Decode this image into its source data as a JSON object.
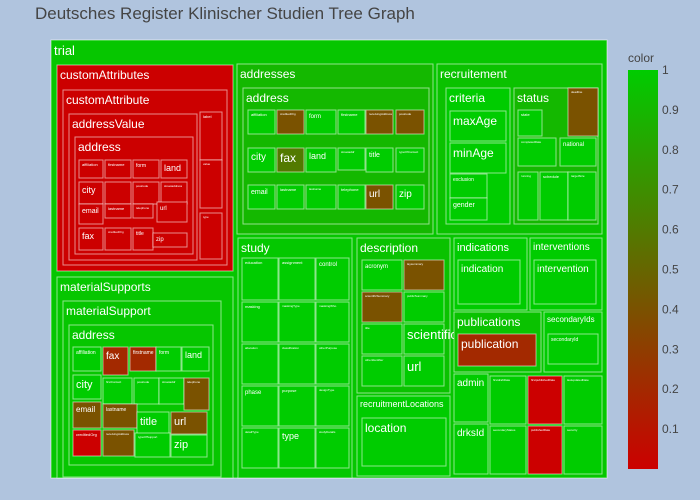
{
  "chart_data": {
    "type": "treemap",
    "title": "Deutsches Register Klinischer Studien Tree Graph",
    "colorbar": {
      "title": "color",
      "range": [
        0,
        1
      ],
      "ticks": [
        "0.1",
        "0.2",
        "0.3",
        "0.4",
        "0.5",
        "0.6",
        "0.7",
        "0.8",
        "0.9",
        "1"
      ],
      "tick_values": [
        0.1,
        0.2,
        0.3,
        0.4,
        0.5,
        0.6,
        0.7,
        0.8,
        0.9,
        1
      ],
      "low_color": "#cc0000",
      "high_color": "#00cc00"
    },
    "nodes": [
      {
        "id": "trial",
        "label": "trial",
        "parent": "",
        "color": 0.97
      },
      {
        "id": "ca",
        "label": "customAttributes",
        "parent": "trial",
        "color": 0.0
      },
      {
        "id": "ca2",
        "label": "customAttribute",
        "parent": "ca",
        "color": 0.0
      },
      {
        "id": "av",
        "label": "addressValue",
        "parent": "ca2",
        "color": 0.0
      },
      {
        "id": "av_addr",
        "label": "address",
        "parent": "av",
        "color": 0.0
      },
      {
        "id": "av_aff",
        "label": "affiliation",
        "parent": "av_addr",
        "color": 0.0
      },
      {
        "id": "av_first",
        "label": "firstname",
        "parent": "av_addr",
        "color": 0.0
      },
      {
        "id": "av_form",
        "label": "form",
        "parent": "av_addr",
        "color": 0.0
      },
      {
        "id": "av_land",
        "label": "land",
        "parent": "av_addr",
        "color": 0.0
      },
      {
        "id": "av_city",
        "label": "city",
        "parent": "av_addr",
        "color": 0.0
      },
      {
        "id": "av_blank",
        "label": "",
        "parent": "av_addr",
        "color": 0.0
      },
      {
        "id": "av_post",
        "label": "postcode",
        "parent": "av_addr",
        "color": 0.0
      },
      {
        "id": "av_street",
        "label": "streetaddress",
        "parent": "av_addr",
        "color": 0.0
      },
      {
        "id": "av_email",
        "label": "email",
        "parent": "av_addr",
        "color": 0.0
      },
      {
        "id": "av_last",
        "label": "lastname",
        "parent": "av_addr",
        "color": 0.0
      },
      {
        "id": "av_tel",
        "label": "telephone",
        "parent": "av_addr",
        "color": 0.0
      },
      {
        "id": "av_url",
        "label": "url",
        "parent": "av_addr",
        "color": 0.0
      },
      {
        "id": "av_fax",
        "label": "fax",
        "parent": "av_addr",
        "color": 0.0
      },
      {
        "id": "av_cred",
        "label": "creditedOrg",
        "parent": "av_addr",
        "color": 0.0
      },
      {
        "id": "av_title",
        "label": "title",
        "parent": "av_addr",
        "color": 0.0
      },
      {
        "id": "av_zip",
        "label": "zip",
        "parent": "av_addr",
        "color": 0.0
      },
      {
        "id": "ca_label",
        "label": "label",
        "parent": "ca2",
        "color": 0.0
      },
      {
        "id": "ca_val",
        "label": "value",
        "parent": "ca2",
        "color": 0.0
      },
      {
        "id": "ca_type",
        "label": "type",
        "parent": "ca2",
        "color": 0.0
      },
      {
        "id": "ms",
        "label": "materialSupports",
        "parent": "trial",
        "color": 0.97
      },
      {
        "id": "ms2",
        "label": "materialSupport",
        "parent": "ms",
        "color": 0.97
      },
      {
        "id": "ms_addr",
        "label": "address",
        "parent": "ms2",
        "color": 0.97
      },
      {
        "id": "ms_aff",
        "label": "affiliation",
        "parent": "ms_addr",
        "color": 1.0
      },
      {
        "id": "ms_fax",
        "label": "fax",
        "parent": "ms_addr",
        "color": 0.2
      },
      {
        "id": "ms_first",
        "label": "firstname",
        "parent": "ms_addr",
        "color": 0.2
      },
      {
        "id": "ms_form",
        "label": "form",
        "parent": "ms_addr",
        "color": 1.0
      },
      {
        "id": "ms_land",
        "label": "land",
        "parent": "ms_addr",
        "color": 1.0
      },
      {
        "id": "ms_city",
        "label": "city",
        "parent": "ms_addr",
        "color": 1.0
      },
      {
        "id": "ms_con",
        "label": "firstContact",
        "parent": "ms_addr",
        "color": 1.0
      },
      {
        "id": "ms_post",
        "label": "postcode",
        "parent": "ms_addr",
        "color": 1.0
      },
      {
        "id": "ms_street",
        "label": "streetaddr",
        "parent": "ms_addr",
        "color": 1.0
      },
      {
        "id": "ms_tel",
        "label": "telephone",
        "parent": "ms_addr",
        "color": 0.4
      },
      {
        "id": "ms_email",
        "label": "email",
        "parent": "ms_addr",
        "color": 0.4
      },
      {
        "id": "ms_last",
        "label": "lastname",
        "parent": "ms_addr",
        "color": 0.4
      },
      {
        "id": "ms_title",
        "label": "title",
        "parent": "ms_addr",
        "color": 1.0
      },
      {
        "id": "ms_url",
        "label": "url",
        "parent": "ms_addr",
        "color": 0.4
      },
      {
        "id": "ms_cred",
        "label": "creditedOrg",
        "parent": "ms_addr",
        "color": 0.0
      },
      {
        "id": "ms_rec",
        "label": "receivingAddress",
        "parent": "ms_addr",
        "color": 0.4
      },
      {
        "id": "ms_type",
        "label": "typeOfSupport",
        "parent": "ms_addr",
        "color": 1.0
      },
      {
        "id": "ms_zip",
        "label": "zip",
        "parent": "ms_addr",
        "color": 1.0
      },
      {
        "id": "addresses",
        "label": "addresses",
        "parent": "trial",
        "color": 0.9
      },
      {
        "id": "ad_addr",
        "label": "address",
        "parent": "addresses",
        "color": 0.9
      },
      {
        "id": "ad_aff",
        "label": "affiliation",
        "parent": "ad_addr",
        "color": 1.0
      },
      {
        "id": "ad_creditedorg",
        "label": "creditedOrg",
        "parent": "ad_addr",
        "color": 0.4
      },
      {
        "id": "ad_form",
        "label": "form",
        "parent": "ad_addr",
        "color": 1.0
      },
      {
        "id": "ad_first",
        "label": "firstname",
        "parent": "ad_addr",
        "color": 1.0
      },
      {
        "id": "ad_rec",
        "label": "receivingAddress",
        "parent": "ad_addr",
        "color": 0.4
      },
      {
        "id": "ad_post",
        "label": "postcode",
        "parent": "ad_addr",
        "color": 0.4
      },
      {
        "id": "ad_city",
        "label": "city",
        "parent": "ad_addr",
        "color": 1.0
      },
      {
        "id": "ad_fax",
        "label": "fax",
        "parent": "ad_addr",
        "color": 0.6
      },
      {
        "id": "ad_land",
        "label": "land",
        "parent": "ad_addr",
        "color": 1.0
      },
      {
        "id": "ad_street",
        "label": "streetaddr",
        "parent": "ad_addr",
        "color": 1.0
      },
      {
        "id": "ad_title",
        "label": "title",
        "parent": "ad_addr",
        "color": 1.0
      },
      {
        "id": "ad_typeof",
        "label": "typeOfContact",
        "parent": "ad_addr",
        "color": 1.0
      },
      {
        "id": "ad_email",
        "label": "email",
        "parent": "ad_addr",
        "color": 1.0
      },
      {
        "id": "ad_last",
        "label": "lastname",
        "parent": "ad_addr",
        "color": 1.0
      },
      {
        "id": "ad_lastname2",
        "label": "lastname",
        "parent": "ad_addr",
        "color": 1.0
      },
      {
        "id": "ad_tel",
        "label": "telephone",
        "parent": "ad_addr",
        "color": 1.0
      },
      {
        "id": "ad_url",
        "label": "url",
        "parent": "ad_addr",
        "color": 0.4
      },
      {
        "id": "ad_zip",
        "label": "zip",
        "parent": "ad_addr",
        "color": 1.0
      },
      {
        "id": "recruitement",
        "label": "recruitement",
        "parent": "trial",
        "color": 0.95
      },
      {
        "id": "criteria",
        "label": "criteria",
        "parent": "recruitement",
        "color": 1.0
      },
      {
        "id": "maxAge",
        "label": "maxAge",
        "parent": "criteria",
        "color": 1.0
      },
      {
        "id": "minAge",
        "label": "minAge",
        "parent": "criteria",
        "color": 1.0
      },
      {
        "id": "exclusion",
        "label": "exclusion",
        "parent": "criteria",
        "color": 1.0
      },
      {
        "id": "gender",
        "label": "gender",
        "parent": "criteria",
        "color": 1.0
      },
      {
        "id": "status",
        "label": "status",
        "parent": "recruitement",
        "color": 0.9
      },
      {
        "id": "st_state",
        "label": "state",
        "parent": "status",
        "color": 1.0
      },
      {
        "id": "st_deadline",
        "label": "deadline",
        "parent": "status",
        "color": 0.4
      },
      {
        "id": "st_national",
        "label": "national",
        "parent": "status",
        "color": 1.0
      },
      {
        "id": "st_complete",
        "label": "completedDate",
        "parent": "status",
        "color": 1.0
      },
      {
        "id": "st_running",
        "label": "running",
        "parent": "status",
        "color": 1.0
      },
      {
        "id": "st_schedule",
        "label": "schedule",
        "parent": "status",
        "color": 1.0
      },
      {
        "id": "st_target",
        "label": "targetSize",
        "parent": "status",
        "color": 1.0
      },
      {
        "id": "study",
        "label": "study",
        "parent": "trial",
        "color": 0.98
      },
      {
        "id": "sd_edu",
        "label": "education",
        "parent": "study",
        "color": 1.0
      },
      {
        "id": "sd_assign",
        "label": "assignment",
        "parent": "study",
        "color": 1.0
      },
      {
        "id": "sd_control",
        "label": "control",
        "parent": "study",
        "color": 1.0
      },
      {
        "id": "sd_mask",
        "label": "masking",
        "parent": "study",
        "color": 1.0
      },
      {
        "id": "sd_mtype",
        "label": "maskingType",
        "parent": "study",
        "color": 1.0
      },
      {
        "id": "sd_mwho",
        "label": "maskingWho",
        "parent": "study",
        "color": 1.0
      },
      {
        "id": "sd_alloc",
        "label": "allocation",
        "parent": "study",
        "color": 1.0
      },
      {
        "id": "sd_class",
        "label": "classification",
        "parent": "study",
        "color": 1.0
      },
      {
        "id": "sd_other",
        "label": "otherPurpose",
        "parent": "study",
        "color": 1.0
      },
      {
        "id": "sd_phase",
        "label": "phase",
        "parent": "study",
        "color": 1.0
      },
      {
        "id": "sd_purpose",
        "label": "purpose",
        "parent": "study",
        "color": 1.0
      },
      {
        "id": "sd_design",
        "label": "designType",
        "parent": "study",
        "color": 1.0
      },
      {
        "id": "sd_detail",
        "label": "detailType",
        "parent": "study",
        "color": 1.0
      },
      {
        "id": "sd_type",
        "label": "type",
        "parent": "study",
        "color": 1.0
      },
      {
        "id": "sd_detail2",
        "label": "studyDetails",
        "parent": "study",
        "color": 1.0
      },
      {
        "id": "description",
        "label": "description",
        "parent": "trial",
        "color": 0.95
      },
      {
        "id": "ds_acr",
        "label": "acronym",
        "parent": "description",
        "color": 1.0
      },
      {
        "id": "ds_lay",
        "label": "laysummary",
        "parent": "description",
        "color": 0.4
      },
      {
        "id": "ds_sci",
        "label": "scientificSummary",
        "parent": "description",
        "color": 0.4
      },
      {
        "id": "ds_pub",
        "label": "publicSummary",
        "parent": "description",
        "color": 1.0
      },
      {
        "id": "ds_title",
        "label": "title",
        "parent": "description",
        "color": 1.0
      },
      {
        "id": "ds_scititle",
        "label": "scientificTitle",
        "parent": "description",
        "color": 1.0
      },
      {
        "id": "ds_url",
        "label": "url",
        "parent": "description",
        "color": 1.0
      },
      {
        "id": "ds_other",
        "label": "otherIdentifier",
        "parent": "description",
        "color": 1.0
      },
      {
        "id": "recloc",
        "label": "recruitmentLocations",
        "parent": "trial",
        "color": 1.0
      },
      {
        "id": "location",
        "label": "location",
        "parent": "recloc",
        "color": 1.0
      },
      {
        "id": "indications",
        "label": "indications",
        "parent": "trial",
        "color": 1.0
      },
      {
        "id": "indication",
        "label": "indication",
        "parent": "indications",
        "color": 1.0
      },
      {
        "id": "interventions",
        "label": "interventions",
        "parent": "trial",
        "color": 1.0
      },
      {
        "id": "intervention",
        "label": "intervention",
        "parent": "interventions",
        "color": 1.0
      },
      {
        "id": "publications",
        "label": "publications",
        "parent": "trial",
        "color": 0.95
      },
      {
        "id": "publication",
        "label": "publication",
        "parent": "publications",
        "color": 0.2
      },
      {
        "id": "secondaryIds",
        "label": "secondaryIds",
        "parent": "trial",
        "color": 1.0
      },
      {
        "id": "secondaryId",
        "label": "secondaryId",
        "parent": "secondaryIds",
        "color": 1.0
      },
      {
        "id": "admin",
        "label": "admin",
        "parent": "trial",
        "color": 1.0
      },
      {
        "id": "drksId",
        "label": "drksId",
        "parent": "trial",
        "color": 1.0
      },
      {
        "id": "firstdraft",
        "label": "firstdraftDate",
        "parent": "trial",
        "color": 1.0
      },
      {
        "id": "firstpublished",
        "label": "firstpublishedDate",
        "parent": "trial",
        "color": 0.0
      },
      {
        "id": "lastupdated",
        "label": "lastupdatedDate",
        "parent": "trial",
        "color": 1.0
      },
      {
        "id": "secstatus",
        "label": "secondaryStatus",
        "parent": "trial",
        "color": 1.0
      },
      {
        "id": "publishedDate",
        "label": "publishedDate",
        "parent": "trial",
        "color": 0.0
      },
      {
        "id": "security",
        "label": "security",
        "parent": "trial",
        "color": 1.0
      }
    ]
  }
}
